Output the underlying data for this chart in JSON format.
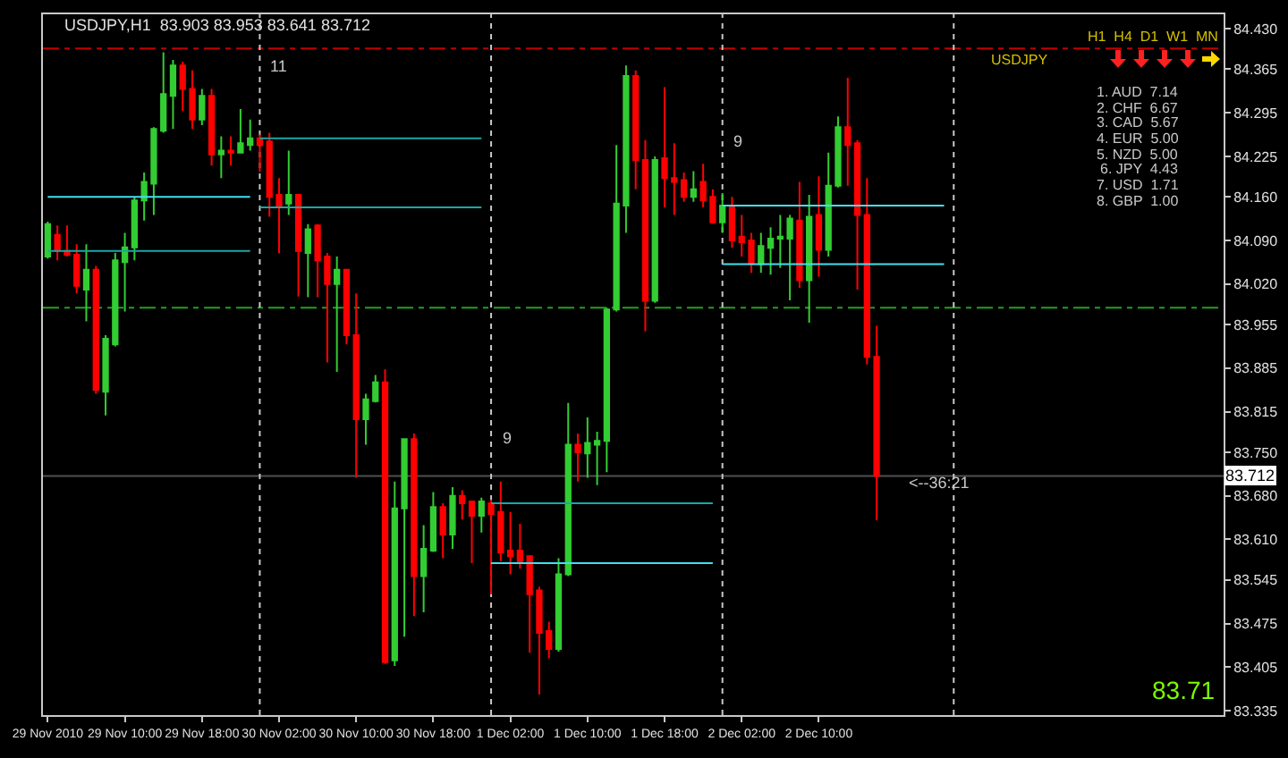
{
  "chart_data": {
    "type": "candlestick",
    "title": "USDJPY,H1  83.903 83.953 83.641 83.712",
    "x": [
      "2010-11-29T02:00",
      "2010-11-29T03:00",
      "2010-11-29T04:00",
      "2010-11-29T05:00",
      "2010-11-29T06:00",
      "2010-11-29T07:00",
      "2010-11-29T08:00",
      "2010-11-29T09:00",
      "2010-11-29T10:00",
      "2010-11-29T11:00",
      "2010-11-29T12:00",
      "2010-11-29T13:00",
      "2010-11-29T14:00",
      "2010-11-29T15:00",
      "2010-11-29T16:00",
      "2010-11-29T17:00",
      "2010-11-29T18:00",
      "2010-11-29T19:00",
      "2010-11-29T20:00",
      "2010-11-29T21:00",
      "2010-11-29T22:00",
      "2010-11-29T23:00",
      "2010-11-30T00:00",
      "2010-11-30T01:00",
      "2010-11-30T02:00",
      "2010-11-30T03:00",
      "2010-11-30T04:00",
      "2010-11-30T05:00",
      "2010-11-30T06:00",
      "2010-11-30T07:00",
      "2010-11-30T08:00",
      "2010-11-30T09:00",
      "2010-11-30T10:00",
      "2010-11-30T11:00",
      "2010-11-30T12:00",
      "2010-11-30T13:00",
      "2010-11-30T14:00",
      "2010-11-30T15:00",
      "2010-11-30T16:00",
      "2010-11-30T17:00",
      "2010-11-30T18:00",
      "2010-11-30T19:00",
      "2010-11-30T20:00",
      "2010-11-30T21:00",
      "2010-11-30T22:00",
      "2010-11-30T23:00",
      "2010-12-01T00:00",
      "2010-12-01T01:00",
      "2010-12-01T02:00",
      "2010-12-01T03:00",
      "2010-12-01T04:00",
      "2010-12-01T05:00",
      "2010-12-01T06:00",
      "2010-12-01T07:00",
      "2010-12-01T08:00",
      "2010-12-01T09:00",
      "2010-12-01T10:00",
      "2010-12-01T11:00",
      "2010-12-01T12:00",
      "2010-12-01T13:00",
      "2010-12-01T14:00",
      "2010-12-01T15:00",
      "2010-12-01T16:00",
      "2010-12-01T17:00",
      "2010-12-01T18:00",
      "2010-12-01T19:00",
      "2010-12-01T20:00",
      "2010-12-01T21:00",
      "2010-12-01T22:00",
      "2010-12-01T23:00",
      "2010-12-02T00:00",
      "2010-12-02T01:00",
      "2010-12-02T02:00",
      "2010-12-02T03:00",
      "2010-12-02T04:00",
      "2010-12-02T05:00",
      "2010-12-02T06:00",
      "2010-12-02T07:00",
      "2010-12-02T08:00",
      "2010-12-02T09:00",
      "2010-12-02T10:00",
      "2010-12-02T11:00",
      "2010-12-02T12:00",
      "2010-12-02T13:00",
      "2010-12-02T14:00",
      "2010-12-02T15:00",
      "2010-12-02T16:00"
    ],
    "ohlc": [
      [
        84.064,
        84.12,
        84.061,
        84.116
      ],
      [
        84.099,
        84.114,
        84.058,
        84.073
      ],
      [
        84.073,
        84.114,
        84.064,
        84.067
      ],
      [
        84.067,
        84.084,
        84.005,
        84.017
      ],
      [
        84.011,
        84.084,
        83.96,
        84.043
      ],
      [
        84.043,
        84.049,
        83.844,
        83.85
      ],
      [
        83.847,
        83.938,
        83.809,
        83.932
      ],
      [
        83.923,
        84.07,
        83.92,
        84.058
      ],
      [
        84.055,
        84.102,
        83.976,
        84.079
      ],
      [
        84.079,
        84.16,
        84.058,
        84.154
      ],
      [
        84.154,
        84.199,
        84.122,
        84.184
      ],
      [
        84.181,
        84.272,
        84.131,
        84.269
      ],
      [
        84.266,
        84.392,
        84.263,
        84.325
      ],
      [
        84.322,
        84.38,
        84.269,
        84.371
      ],
      [
        84.371,
        84.377,
        84.298,
        84.333
      ],
      [
        84.333,
        84.363,
        84.269,
        84.284
      ],
      [
        84.284,
        84.333,
        84.275,
        84.322
      ],
      [
        84.322,
        84.333,
        84.21,
        84.228
      ],
      [
        84.228,
        84.257,
        84.19,
        84.234
      ],
      [
        84.234,
        84.257,
        84.21,
        84.231
      ],
      [
        84.231,
        84.301,
        84.231,
        84.246
      ],
      [
        84.243,
        84.284,
        84.234,
        84.254
      ],
      [
        84.254,
        84.26,
        84.2,
        84.243
      ],
      [
        84.249,
        84.263,
        84.128,
        84.16
      ],
      [
        84.163,
        84.19,
        84.069,
        84.143
      ],
      [
        84.149,
        84.234,
        84.131,
        84.163
      ],
      [
        84.163,
        84.163,
        84.0,
        84.073
      ],
      [
        84.07,
        84.116,
        83.999,
        84.108
      ],
      [
        84.114,
        84.116,
        83.999,
        84.058
      ],
      [
        84.064,
        84.07,
        83.894,
        84.02
      ],
      [
        84.02,
        84.064,
        83.879,
        84.043
      ],
      [
        84.043,
        84.043,
        83.923,
        83.938
      ],
      [
        83.938,
        84.005,
        83.709,
        83.803
      ],
      [
        83.803,
        83.844,
        83.762,
        83.835
      ],
      [
        83.832,
        83.874,
        83.83,
        83.862
      ],
      [
        83.862,
        83.883,
        83.41,
        83.413
      ],
      [
        83.416,
        83.703,
        83.407,
        83.66
      ],
      [
        83.66,
        83.771,
        83.454,
        83.771
      ],
      [
        83.771,
        83.78,
        83.487,
        83.551
      ],
      [
        83.551,
        83.633,
        83.493,
        83.595
      ],
      [
        83.592,
        83.686,
        83.59,
        83.662
      ],
      [
        83.662,
        83.668,
        83.58,
        83.618
      ],
      [
        83.618,
        83.694,
        83.595,
        83.68
      ],
      [
        83.68,
        83.689,
        83.642,
        83.668
      ],
      [
        83.671,
        83.671,
        83.572,
        83.648
      ],
      [
        83.648,
        83.677,
        83.621,
        83.671
      ],
      [
        83.668,
        83.674,
        83.522,
        83.651
      ],
      [
        83.654,
        83.703,
        83.575,
        83.589
      ],
      [
        83.592,
        83.654,
        83.554,
        83.583
      ],
      [
        83.592,
        83.635,
        83.563,
        83.575
      ],
      [
        83.583,
        83.583,
        83.428,
        83.522
      ],
      [
        83.528,
        83.534,
        83.361,
        83.46
      ],
      [
        83.463,
        83.478,
        83.419,
        83.434
      ],
      [
        83.434,
        83.58,
        83.43,
        83.554
      ],
      [
        83.554,
        83.829,
        83.551,
        83.762
      ],
      [
        83.762,
        83.78,
        83.703,
        83.75
      ],
      [
        83.748,
        83.806,
        83.709,
        83.765
      ],
      [
        83.762,
        83.783,
        83.697,
        83.768
      ],
      [
        83.768,
        83.982,
        83.718,
        83.979
      ],
      [
        83.979,
        84.243,
        83.976,
        84.149
      ],
      [
        84.146,
        84.371,
        84.102,
        84.354
      ],
      [
        84.354,
        84.363,
        84.172,
        84.219
      ],
      [
        84.219,
        84.251,
        83.944,
        83.993
      ],
      [
        83.993,
        84.225,
        83.99,
        84.219
      ],
      [
        84.222,
        84.336,
        84.143,
        84.19
      ],
      [
        84.19,
        84.246,
        84.131,
        84.184
      ],
      [
        84.187,
        84.199,
        84.152,
        84.16
      ],
      [
        84.16,
        84.201,
        84.152,
        84.172
      ],
      [
        84.184,
        84.213,
        84.143,
        84.154
      ],
      [
        84.16,
        84.172,
        84.117,
        84.119
      ],
      [
        84.119,
        84.166,
        84.102,
        84.146
      ],
      [
        84.143,
        84.16,
        84.078,
        84.09
      ],
      [
        84.096,
        84.131,
        84.064,
        84.087
      ],
      [
        84.09,
        84.102,
        84.038,
        84.052
      ],
      [
        84.052,
        84.102,
        84.038,
        84.081
      ],
      [
        84.078,
        84.111,
        84.035,
        84.093
      ],
      [
        84.093,
        84.131,
        84.046,
        84.096
      ],
      [
        84.093,
        84.131,
        83.994,
        84.125
      ],
      [
        84.122,
        84.184,
        84.014,
        84.026
      ],
      [
        84.026,
        84.163,
        83.958,
        84.128
      ],
      [
        84.131,
        84.193,
        84.032,
        84.075
      ],
      [
        84.075,
        84.231,
        84.064,
        84.178
      ],
      [
        84.178,
        84.289,
        84.175,
        84.272
      ],
      [
        84.272,
        84.351,
        84.178,
        84.243
      ],
      [
        84.246,
        84.251,
        84.011,
        84.131
      ],
      [
        84.131,
        84.19,
        83.891,
        83.903
      ],
      [
        83.903,
        83.953,
        83.641,
        83.712
      ]
    ],
    "colors": [
      "#32cd32",
      "#ff0000",
      "#ff0000",
      "#ff0000",
      "#32cd32",
      "#ff0000",
      "#32cd32",
      "#32cd32",
      "#32cd32",
      "#32cd32",
      "#32cd32",
      "#32cd32",
      "#32cd32",
      "#32cd32",
      "#ff0000",
      "#ff0000",
      "#32cd32",
      "#ff0000",
      "#32cd32",
      "#ff0000",
      "#32cd32",
      "#32cd32",
      "#ff0000",
      "#ff0000",
      "#ff0000",
      "#32cd32",
      "#ff0000",
      "#32cd32",
      "#ff0000",
      "#ff0000",
      "#32cd32",
      "#ff0000",
      "#ff0000",
      "#32cd32",
      "#32cd32",
      "#ff0000",
      "#32cd32",
      "#32cd32",
      "#ff0000",
      "#32cd32",
      "#32cd32",
      "#ff0000",
      "#32cd32",
      "#ff0000",
      "#ff0000",
      "#32cd32",
      "#ff0000",
      "#ff0000",
      "#ff0000",
      "#ff0000",
      "#ff0000",
      "#ff0000",
      "#ff0000",
      "#32cd32",
      "#32cd32",
      "#ff0000",
      "#32cd32",
      "#32cd32",
      "#32cd32",
      "#32cd32",
      "#32cd32",
      "#ff0000",
      "#ff0000",
      "#32cd32",
      "#ff0000",
      "#ff0000",
      "#ff0000",
      "#32cd32",
      "#ff0000",
      "#ff0000",
      "#32cd32",
      "#ff0000",
      "#ff0000",
      "#ff0000",
      "#32cd32",
      "#32cd32",
      "#32cd32",
      "#32cd32",
      "#ff0000",
      "#32cd32",
      "#ff0000",
      "#32cd32",
      "#32cd32",
      "#ff0000",
      "#ff0000",
      "#ff0000",
      "#ff0000"
    ],
    "series": [
      {
        "type": "line",
        "color": "#40e0f0",
        "x": [
          "2010-11-29T02:00",
          "2010-11-29T23:00"
        ],
        "values": [
          84.16,
          84.16
        ]
      },
      {
        "type": "line",
        "color": "#1ea5a5",
        "x": [
          "2010-11-29T02:00",
          "2010-11-29T23:00"
        ],
        "values": [
          84.073,
          84.073
        ]
      },
      {
        "type": "line",
        "color": "#1ea5a5",
        "x": [
          "2010-11-30T00:00",
          "2010-11-30T23:00"
        ],
        "values": [
          84.254,
          84.254
        ]
      },
      {
        "type": "line",
        "color": "#1ea5a5",
        "x": [
          "2010-11-30T00:00",
          "2010-11-30T23:00"
        ],
        "values": [
          84.143,
          84.143
        ]
      },
      {
        "type": "line",
        "color": "#1ea5a5",
        "x": [
          "2010-12-01T00:00",
          "2010-12-01T23:00"
        ],
        "values": [
          83.668,
          83.668
        ]
      },
      {
        "type": "line",
        "color": "#40e0f0",
        "x": [
          "2010-12-01T00:00",
          "2010-12-01T23:00"
        ],
        "values": [
          83.572,
          83.572
        ]
      },
      {
        "type": "line",
        "color": "#40e0f0",
        "x": [
          "2010-12-02T00:00",
          "2010-12-02T23:00"
        ],
        "values": [
          84.146,
          84.146
        ]
      },
      {
        "type": "line",
        "color": "#40e0f0",
        "x": [
          "2010-12-02T00:00",
          "2010-12-02T23:00"
        ],
        "values": [
          84.052,
          84.052
        ]
      }
    ],
    "xlim": [
      "2010-11-29T01:30",
      "2010-12-04T04:00"
    ],
    "xticks": [
      {
        "value": "2010-11-29T02:00",
        "label": "29 Nov 2010"
      },
      {
        "value": "2010-11-29T10:00",
        "label": "29 Nov 10:00"
      },
      {
        "value": "2010-11-29T18:00",
        "label": "29 Nov 18:00"
      },
      {
        "value": "2010-11-30T02:00",
        "label": "30 Nov 02:00"
      },
      {
        "value": "2010-11-30T10:00",
        "label": "30 Nov 10:00"
      },
      {
        "value": "2010-11-30T18:00",
        "label": "30 Nov 18:00"
      },
      {
        "value": "2010-12-01T02:00",
        "label": "1 Dec 02:00"
      },
      {
        "value": "2010-12-01T10:00",
        "label": "1 Dec 10:00"
      },
      {
        "value": "2010-12-01T18:00",
        "label": "1 Dec 18:00"
      },
      {
        "value": "2010-12-02T02:00",
        "label": "2 Dec 02:00"
      },
      {
        "value": "2010-12-02T10:00",
        "label": "2 Dec 10:00"
      }
    ],
    "ylim": [
      83.328,
      84.453
    ],
    "yticks": [
      {
        "value": 84.43,
        "label": "84.430"
      },
      {
        "value": 84.365,
        "label": "84.365"
      },
      {
        "value": 84.295,
        "label": "84.295"
      },
      {
        "value": 84.225,
        "label": "84.225"
      },
      {
        "value": 84.16,
        "label": "84.160"
      },
      {
        "value": 84.09,
        "label": "84.090"
      },
      {
        "value": 84.02,
        "label": "84.020"
      },
      {
        "value": 83.955,
        "label": "83.955"
      },
      {
        "value": 83.885,
        "label": "83.885"
      },
      {
        "value": 83.815,
        "label": "83.815"
      },
      {
        "value": 83.75,
        "label": "83.750"
      },
      {
        "value": 83.68,
        "label": "83.680"
      },
      {
        "value": 83.61,
        "label": "83.610"
      },
      {
        "value": 83.545,
        "label": "83.545"
      },
      {
        "value": 83.475,
        "label": "83.475"
      },
      {
        "value": 83.405,
        "label": "83.405"
      },
      {
        "value": 83.335,
        "label": "83.335"
      }
    ],
    "ref_lines": [
      {
        "axis": "y",
        "value": 84.398,
        "color": "#c00000",
        "line_style": "dashed"
      },
      {
        "axis": "y",
        "value": 83.982,
        "color": "#22a022",
        "line_style": "dashed"
      },
      {
        "axis": "y",
        "value": 83.712,
        "label": "83.712",
        "color": "#505050",
        "line_style": "solid"
      },
      {
        "axis": "x",
        "value": "2010-11-30T00:00",
        "color": "#c8c8c8",
        "line_style": "dotted"
      },
      {
        "axis": "x",
        "value": "2010-12-01T00:00",
        "color": "#c8c8c8",
        "line_style": "dotted"
      },
      {
        "axis": "x",
        "value": "2010-12-02T00:00",
        "color": "#c8c8c8",
        "line_style": "dotted"
      },
      {
        "axis": "x",
        "value": "2010-12-03T00:00",
        "color": "#c8c8c8",
        "line_style": "dotted"
      }
    ],
    "annotations": [
      "11",
      "9",
      {
        "text": "9",
        "x": "2010-12-02T00:45",
        "y": 84.25
      },
      {
        "text": "<--36:21",
        "x": "2010-12-02T19:00",
        "y": 83.7
      },
      "H1  H4  D1  W1  MN",
      "USDJPY",
      "1. AUD  7.14",
      "2. CHF  6.67",
      "3. CAD  5.67",
      "4. EUR  5.00",
      "5. NZD  5.00",
      "6. JPY  4.43",
      "7. USD  1.71",
      "8. GBP  1.00",
      "83.71"
    ],
    "grid": false
  }
}
